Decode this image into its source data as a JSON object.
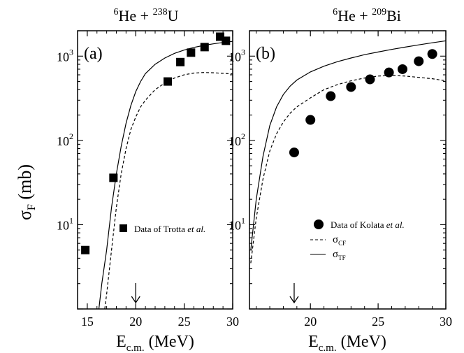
{
  "figure": {
    "ylabel_main": "σ",
    "ylabel_sub": "F",
    "ylabel_unit": " (mb)",
    "y_ticks": [
      {
        "value": 10,
        "label": "10",
        "exp": "1"
      },
      {
        "value": 100,
        "label": "10",
        "exp": "2"
      },
      {
        "value": 1000,
        "label": "10",
        "exp": "3"
      }
    ]
  },
  "chart_data": [
    {
      "type": "scatter",
      "panel_label": "(a)",
      "title_parts": [
        {
          "text": "6",
          "sup": true
        },
        {
          "text": "He + ",
          "sup": false
        },
        {
          "text": "238",
          "sup": true
        },
        {
          "text": "U",
          "sup": false
        }
      ],
      "xlabel_main": "E",
      "xlabel_sub": "c.m.",
      "xlabel_unit": " (MeV)",
      "xlim": [
        14,
        30
      ],
      "ylim": [
        1,
        2000
      ],
      "yscale": "log",
      "xticks": [
        15,
        20,
        25,
        30
      ],
      "arrow_x": 20,
      "marker": "square",
      "points": {
        "x": [
          14.8,
          17.7,
          23.3,
          24.6,
          25.7,
          27.1,
          28.7,
          29.3
        ],
        "y": [
          5,
          36,
          500,
          850,
          1100,
          1280,
          1700,
          1520
        ]
      },
      "series": [
        {
          "name": "",
          "style": "solid",
          "x": [
            16.2,
            16.5,
            17,
            17.5,
            18,
            18.5,
            19,
            19.5,
            20,
            20.5,
            21,
            22,
            23,
            24,
            25,
            26,
            27,
            28,
            29,
            30
          ],
          "y": [
            1,
            2,
            5,
            16,
            40,
            85,
            160,
            260,
            380,
            500,
            620,
            800,
            950,
            1080,
            1180,
            1270,
            1340,
            1400,
            1450,
            1500
          ]
        },
        {
          "name": "",
          "style": "dashed",
          "x": [
            16.8,
            17,
            17.5,
            18,
            18.5,
            19,
            19.5,
            20,
            20.5,
            21,
            22,
            23,
            24,
            25,
            26,
            27,
            28,
            29,
            30
          ],
          "y": [
            1,
            1.5,
            5,
            16,
            40,
            80,
            135,
            190,
            250,
            300,
            400,
            480,
            550,
            600,
            630,
            640,
            635,
            625,
            615
          ]
        }
      ],
      "legend": {
        "text_plain": "Data of Trotta ",
        "text_italic": "et al."
      }
    },
    {
      "type": "scatter",
      "panel_label": "(b)",
      "title_parts": [
        {
          "text": "6",
          "sup": true
        },
        {
          "text": "He + ",
          "sup": false
        },
        {
          "text": "209",
          "sup": true
        },
        {
          "text": "Bi",
          "sup": false
        }
      ],
      "xlabel_main": "E",
      "xlabel_sub": "c.m.",
      "xlabel_unit": " (MeV)",
      "xlim": [
        15.5,
        30
      ],
      "ylim": [
        1,
        2000
      ],
      "yscale": "log",
      "xticks": [
        20,
        25,
        30
      ],
      "arrow_x": 18.8,
      "marker": "circle",
      "points": {
        "x": [
          18.8,
          20.0,
          21.5,
          23.0,
          24.4,
          25.8,
          26.8,
          28.0,
          29.0
        ],
        "y": [
          72,
          175,
          335,
          430,
          530,
          640,
          700,
          870,
          1060
        ]
      },
      "series": [
        {
          "name": "σTF",
          "style": "solid",
          "x": [
            15.6,
            16,
            16.5,
            17,
            17.5,
            18,
            18.5,
            19,
            20,
            21,
            22,
            23,
            24,
            25,
            26,
            27,
            28,
            29,
            30
          ],
          "y": [
            5,
            20,
            65,
            150,
            250,
            350,
            440,
            520,
            650,
            760,
            860,
            950,
            1040,
            1120,
            1200,
            1280,
            1360,
            1440,
            1520
          ]
        },
        {
          "name": "σCF",
          "style": "dashed",
          "x": [
            15.6,
            16,
            16.5,
            17,
            17.5,
            18,
            18.5,
            19,
            20,
            21,
            22,
            23,
            24,
            25,
            26,
            27,
            28,
            29,
            30
          ],
          "y": [
            3.5,
            12,
            35,
            75,
            120,
            165,
            210,
            250,
            320,
            400,
            460,
            510,
            550,
            580,
            590,
            580,
            560,
            540,
            510
          ]
        }
      ],
      "legend": {
        "points_plain": "Data of Kolata ",
        "points_italic": "et al.",
        "cf_main": "σ",
        "cf_sub": "CF",
        "tf_main": "σ",
        "tf_sub": "TF"
      }
    }
  ]
}
